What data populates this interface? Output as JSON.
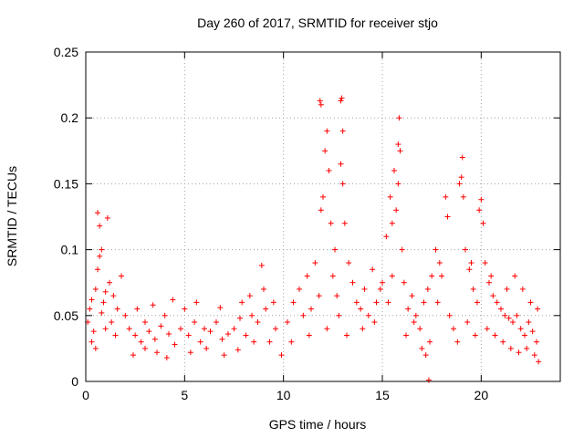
{
  "chart_data": {
    "type": "scatter",
    "title": "Day 260 of 2017, SRMTID for receiver stjo",
    "xlabel": "GPS time / hours",
    "ylabel": "SRMTID / TECUs",
    "xlim": [
      0,
      24
    ],
    "ylim": [
      0,
      0.25
    ],
    "x_ticks": [
      0,
      5,
      10,
      15,
      20
    ],
    "x_tick_labels": [
      "0",
      "5",
      "10",
      "15",
      "20"
    ],
    "y_ticks": [
      0,
      0.05,
      0.1,
      0.15,
      0.2,
      0.25
    ],
    "y_tick_labels": [
      "0",
      "0.05",
      "0.1",
      "0.15",
      "0.2",
      "0.25"
    ],
    "grid": true,
    "marker": "+",
    "marker_color": "#ff0000",
    "series": [
      {
        "name": "stjo",
        "points": [
          [
            0.1,
            0.045
          ],
          [
            0.2,
            0.055
          ],
          [
            0.3,
            0.062
          ],
          [
            0.4,
            0.038
          ],
          [
            0.5,
            0.07
          ],
          [
            0.6,
            0.085
          ],
          [
            0.7,
            0.095
          ],
          [
            0.8,
            0.1
          ],
          [
            0.9,
            0.06
          ],
          [
            1.0,
            0.04
          ],
          [
            1.1,
            0.124
          ],
          [
            0.6,
            0.128
          ],
          [
            0.7,
            0.118
          ],
          [
            1.2,
            0.075
          ],
          [
            1.4,
            0.065
          ],
          [
            1.6,
            0.055
          ],
          [
            1.8,
            0.08
          ],
          [
            2.0,
            0.05
          ],
          [
            0.3,
            0.03
          ],
          [
            0.5,
            0.025
          ],
          [
            0.8,
            0.052
          ],
          [
            1.0,
            0.068
          ],
          [
            1.3,
            0.045
          ],
          [
            1.5,
            0.035
          ],
          [
            2.2,
            0.04
          ],
          [
            2.5,
            0.035
          ],
          [
            2.8,
            0.03
          ],
          [
            3.0,
            0.045
          ],
          [
            3.2,
            0.038
          ],
          [
            3.5,
            0.032
          ],
          [
            3.8,
            0.042
          ],
          [
            4.0,
            0.05
          ],
          [
            4.2,
            0.036
          ],
          [
            4.5,
            0.028
          ],
          [
            4.8,
            0.04
          ],
          [
            5.0,
            0.055
          ],
          [
            5.2,
            0.035
          ],
          [
            5.5,
            0.045
          ],
          [
            5.8,
            0.03
          ],
          [
            6.0,
            0.04
          ],
          [
            6.3,
            0.038
          ],
          [
            6.6,
            0.045
          ],
          [
            6.9,
            0.032
          ],
          [
            7.2,
            0.036
          ],
          [
            7.5,
            0.04
          ],
          [
            7.8,
            0.048
          ],
          [
            8.1,
            0.035
          ],
          [
            8.4,
            0.05
          ],
          [
            8.7,
            0.045
          ],
          [
            8.9,
            0.088
          ],
          [
            9.1,
            0.055
          ],
          [
            9.3,
            0.03
          ],
          [
            9.6,
            0.04
          ],
          [
            9.9,
            0.02
          ],
          [
            2.4,
            0.02
          ],
          [
            3.0,
            0.025
          ],
          [
            3.6,
            0.022
          ],
          [
            4.1,
            0.018
          ],
          [
            5.3,
            0.022
          ],
          [
            6.1,
            0.025
          ],
          [
            7.0,
            0.02
          ],
          [
            7.7,
            0.024
          ],
          [
            8.5,
            0.03
          ],
          [
            2.6,
            0.055
          ],
          [
            3.4,
            0.058
          ],
          [
            4.4,
            0.062
          ],
          [
            5.6,
            0.06
          ],
          [
            6.8,
            0.056
          ],
          [
            7.9,
            0.06
          ],
          [
            8.3,
            0.065
          ],
          [
            9.0,
            0.07
          ],
          [
            9.5,
            0.06
          ],
          [
            10.2,
            0.045
          ],
          [
            10.5,
            0.06
          ],
          [
            10.8,
            0.07
          ],
          [
            11.0,
            0.05
          ],
          [
            11.2,
            0.08
          ],
          [
            11.4,
            0.055
          ],
          [
            11.6,
            0.09
          ],
          [
            11.8,
            0.065
          ],
          [
            11.9,
            0.13
          ],
          [
            12.0,
            0.14
          ],
          [
            12.1,
            0.175
          ],
          [
            12.2,
            0.19
          ],
          [
            12.3,
            0.16
          ],
          [
            12.4,
            0.12
          ],
          [
            12.5,
            0.08
          ],
          [
            11.85,
            0.213
          ],
          [
            11.9,
            0.21
          ],
          [
            12.6,
            0.1
          ],
          [
            12.7,
            0.065
          ],
          [
            12.8,
            0.05
          ],
          [
            12.9,
            0.213
          ],
          [
            12.95,
            0.215
          ],
          [
            13.0,
            0.19
          ],
          [
            12.9,
            0.165
          ],
          [
            13.0,
            0.15
          ],
          [
            13.1,
            0.12
          ],
          [
            13.3,
            0.09
          ],
          [
            13.5,
            0.075
          ],
          [
            13.7,
            0.06
          ],
          [
            13.9,
            0.055
          ],
          [
            14.1,
            0.07
          ],
          [
            14.3,
            0.05
          ],
          [
            14.5,
            0.085
          ],
          [
            14.7,
            0.06
          ],
          [
            14.9,
            0.07
          ],
          [
            15.0,
            0.075
          ],
          [
            10.4,
            0.03
          ],
          [
            11.3,
            0.035
          ],
          [
            12.2,
            0.04
          ],
          [
            13.2,
            0.035
          ],
          [
            14.0,
            0.04
          ],
          [
            14.6,
            0.045
          ],
          [
            15.2,
            0.11
          ],
          [
            15.4,
            0.14
          ],
          [
            15.5,
            0.12
          ],
          [
            15.6,
            0.16
          ],
          [
            15.7,
            0.13
          ],
          [
            15.8,
            0.18
          ],
          [
            15.85,
            0.2
          ],
          [
            15.9,
            0.175
          ],
          [
            15.8,
            0.15
          ],
          [
            16.0,
            0.1
          ],
          [
            16.1,
            0.075
          ],
          [
            16.3,
            0.055
          ],
          [
            16.5,
            0.065
          ],
          [
            16.7,
            0.05
          ],
          [
            16.9,
            0.04
          ],
          [
            17.1,
            0.06
          ],
          [
            17.3,
            0.07
          ],
          [
            17.5,
            0.08
          ],
          [
            17.7,
            0.1
          ],
          [
            17.9,
            0.09
          ],
          [
            18.0,
            0.08
          ],
          [
            18.2,
            0.14
          ],
          [
            18.3,
            0.125
          ],
          [
            15.3,
            0.06
          ],
          [
            15.5,
            0.08
          ],
          [
            16.2,
            0.035
          ],
          [
            16.6,
            0.045
          ],
          [
            17.0,
            0.025
          ],
          [
            17.4,
            0.03
          ],
          [
            17.2,
            0.02
          ],
          [
            17.35,
            0.001
          ],
          [
            17.8,
            0.06
          ],
          [
            18.4,
            0.05
          ],
          [
            18.6,
            0.04
          ],
          [
            18.8,
            0.03
          ],
          [
            18.9,
            0.15
          ],
          [
            19.0,
            0.155
          ],
          [
            19.05,
            0.17
          ],
          [
            19.1,
            0.14
          ],
          [
            19.2,
            0.1
          ],
          [
            19.4,
            0.085
          ],
          [
            19.6,
            0.07
          ],
          [
            19.8,
            0.06
          ],
          [
            19.9,
            0.13
          ],
          [
            20.0,
            0.138
          ],
          [
            20.1,
            0.12
          ],
          [
            20.2,
            0.09
          ],
          [
            20.4,
            0.075
          ],
          [
            20.6,
            0.065
          ],
          [
            20.8,
            0.06
          ],
          [
            21.0,
            0.055
          ],
          [
            21.2,
            0.05
          ],
          [
            21.4,
            0.048
          ],
          [
            21.6,
            0.045
          ],
          [
            21.8,
            0.05
          ],
          [
            22.0,
            0.04
          ],
          [
            22.2,
            0.035
          ],
          [
            22.4,
            0.045
          ],
          [
            22.6,
            0.038
          ],
          [
            22.8,
            0.03
          ],
          [
            19.3,
            0.045
          ],
          [
            19.7,
            0.035
          ],
          [
            20.3,
            0.04
          ],
          [
            20.7,
            0.035
          ],
          [
            21.1,
            0.03
          ],
          [
            21.5,
            0.025
          ],
          [
            21.9,
            0.022
          ],
          [
            22.3,
            0.025
          ],
          [
            22.7,
            0.02
          ],
          [
            22.9,
            0.015
          ],
          [
            19.5,
            0.09
          ],
          [
            20.5,
            0.08
          ],
          [
            21.3,
            0.07
          ],
          [
            21.7,
            0.08
          ],
          [
            22.1,
            0.07
          ],
          [
            22.5,
            0.06
          ],
          [
            22.85,
            0.055
          ]
        ]
      }
    ]
  }
}
